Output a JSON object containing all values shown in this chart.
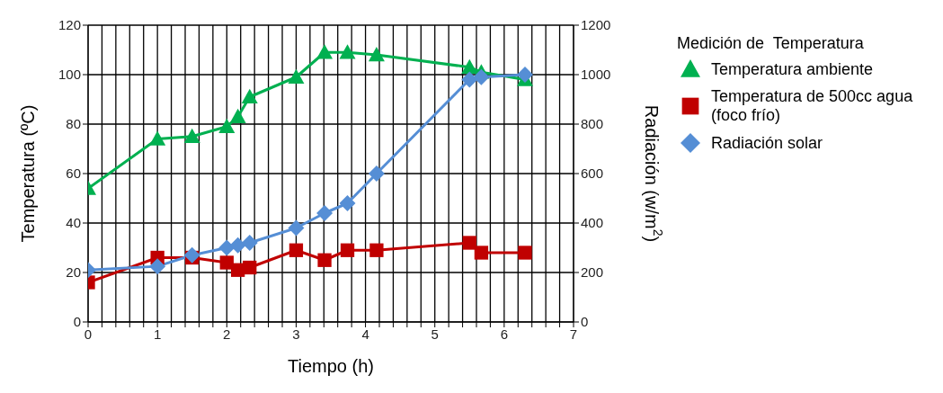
{
  "chart_data": {
    "type": "line",
    "xlabel": "Tiempo (h)",
    "ylabel": "Temperatura (ºC)",
    "y2label": "Radiación (w/m$^{2}$)",
    "legend_title": "Medición de  Temperatura",
    "x": [
      0,
      1,
      1.5,
      2,
      2.16,
      2.33,
      3,
      3.41,
      3.74,
      4.16,
      5.5,
      5.67,
      6.3
    ],
    "series": [
      {
        "name": "Temperatura ambiente",
        "color": "#00b050",
        "marker": "triangle",
        "values": [
          54,
          74,
          75,
          79,
          83,
          91,
          99,
          109,
          109,
          108,
          103,
          101,
          98
        ]
      },
      {
        "name": "Temperatura de 500cc agua (foco frío)",
        "color": "#c00000",
        "marker": "square",
        "values": [
          16,
          26,
          26,
          24,
          21,
          22,
          29,
          25,
          29,
          29,
          32,
          28,
          28
        ]
      },
      {
        "name": "Radiación solar",
        "color": "#558ed5",
        "marker": "diamond",
        "axis": "y2",
        "values": [
          210,
          225,
          270,
          300,
          310,
          320,
          380,
          440,
          480,
          600,
          980,
          990,
          1000
        ]
      }
    ],
    "xlim": [
      0,
      7
    ],
    "xticks": [
      0,
      {
        "value": 0.2,
        "label": null
      },
      {
        "value": 0.4,
        "label": null
      },
      {
        "value": 0.6,
        "label": null
      },
      {
        "value": 0.8,
        "label": null
      },
      1,
      {
        "value": 1.2,
        "label": null
      },
      {
        "value": 1.4,
        "label": null
      },
      {
        "value": 1.6,
        "label": null
      },
      {
        "value": 1.8,
        "label": null
      },
      2,
      {
        "value": 2.2,
        "label": null
      },
      {
        "value": 2.4,
        "label": null
      },
      {
        "value": 2.6,
        "label": null
      },
      {
        "value": 2.8,
        "label": null
      },
      3,
      {
        "value": 3.2,
        "label": null
      },
      {
        "value": 3.4,
        "label": null
      },
      {
        "value": 3.6,
        "label": null
      },
      {
        "value": 3.8,
        "label": null
      },
      4,
      {
        "value": 4.2,
        "label": null
      },
      {
        "value": 4.4,
        "label": null
      },
      {
        "value": 4.6,
        "label": null
      },
      {
        "value": 4.8,
        "label": null
      },
      5,
      {
        "value": 5.2,
        "label": null
      },
      {
        "value": 5.4,
        "label": null
      },
      {
        "value": 5.6,
        "label": null
      },
      {
        "value": 5.8,
        "label": null
      },
      6,
      {
        "value": 6.2,
        "label": null
      },
      {
        "value": 6.4,
        "label": null
      },
      {
        "value": 6.6,
        "label": null
      },
      {
        "value": 6.8,
        "label": null
      },
      7
    ],
    "ylim": [
      0,
      120
    ],
    "yticks": [
      0,
      20,
      40,
      60,
      80,
      100,
      120
    ],
    "y2lim": [
      0,
      1200
    ],
    "y2ticks": [
      0,
      200,
      400,
      600,
      800,
      1000,
      1200
    ],
    "grid": true,
    "legend": "right",
    "line_style": "solid"
  }
}
